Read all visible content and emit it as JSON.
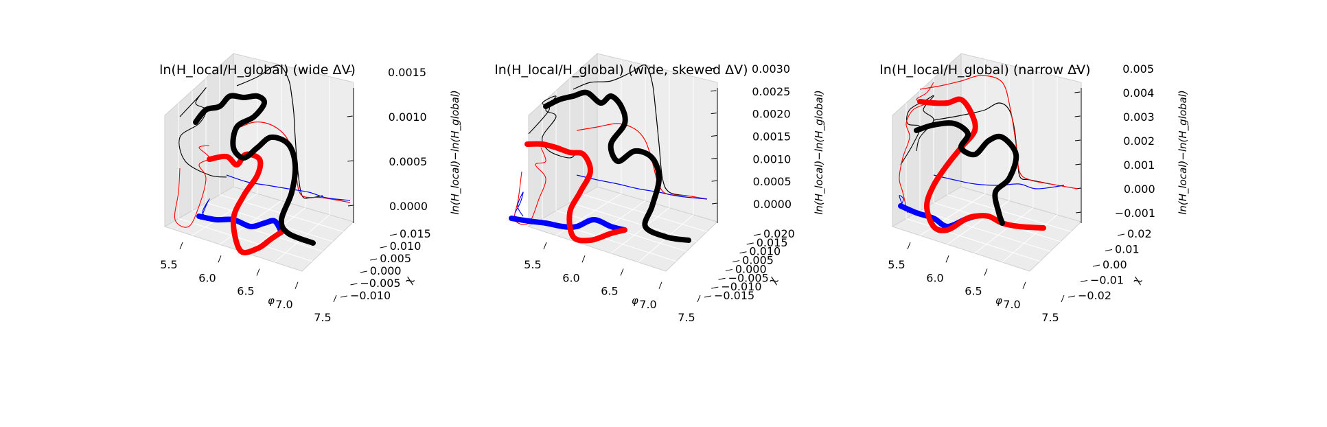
{
  "chart_data": [
    {
      "type": "line3d",
      "title": "ln(H_local/H_global) (wide ΔV)",
      "xlabel": "φ",
      "ylabel": "χ",
      "zlabel": "ln(H_local)−ln(H_global)",
      "x_ticks": [
        "5.5",
        "6.0",
        "6.5",
        "7.0",
        "7.5"
      ],
      "y_ticks": [
        "−0.010",
        "−0.005",
        "0.000",
        "0.005",
        "0.010",
        "0.015"
      ],
      "z_ticks": [
        "0.0000",
        "0.0005",
        "0.0010",
        "0.0015"
      ],
      "xlim": [
        5.5,
        7.5
      ],
      "ylim": [
        -0.012,
        0.018
      ],
      "zlim": [
        -0.0002,
        0.0017
      ],
      "colors": {
        "primary": "#000000",
        "secondary": "#ff0000",
        "base": "#0000ff"
      }
    },
    {
      "type": "line3d",
      "title": "ln(H_local/H_global) (wide, skewed ΔV)",
      "xlabel": "φ",
      "ylabel": "χ",
      "zlabel": "ln(H_local)−ln(H_global)",
      "x_ticks": [
        "5.5",
        "6.0",
        "6.5",
        "7.0",
        "7.5"
      ],
      "y_ticks": [
        "−0.015",
        "−0.010",
        "−0.005",
        "0.000",
        "0.005",
        "0.010",
        "0.015",
        "0.020"
      ],
      "z_ticks": [
        "0.0000",
        "0.0005",
        "0.0010",
        "0.0015",
        "0.0020",
        "0.0025",
        "0.0030"
      ],
      "xlim": [
        5.5,
        7.5
      ],
      "ylim": [
        -0.016,
        0.022
      ],
      "zlim": [
        -0.0003,
        0.0032
      ],
      "colors": {
        "primary": "#000000",
        "secondary": "#ff0000",
        "base": "#0000ff"
      }
    },
    {
      "type": "line3d",
      "title": "ln(H_local/H_global) (narrow ΔV)",
      "xlabel": "φ",
      "ylabel": "χ",
      "zlabel": "ln(H_local)−ln(H_global)",
      "x_ticks": [
        "5.5",
        "6.0",
        "6.5",
        "7.0",
        "7.5"
      ],
      "y_ticks": [
        "−0.02",
        "−0.01",
        "0.00",
        "0.01",
        "0.02"
      ],
      "z_ticks": [
        "−0.001",
        "0.000",
        "0.001",
        "0.002",
        "0.003",
        "0.004",
        "0.005"
      ],
      "xlim": [
        5.5,
        7.5
      ],
      "ylim": [
        -0.022,
        0.026
      ],
      "zlim": [
        -0.0012,
        0.0056
      ],
      "colors": {
        "primary": "#000000",
        "secondary": "#ff0000",
        "base": "#0000ff"
      }
    }
  ]
}
